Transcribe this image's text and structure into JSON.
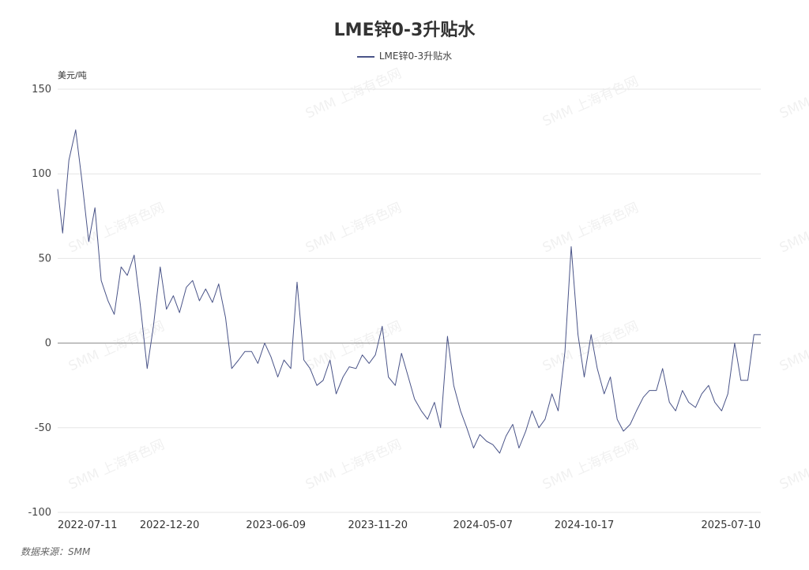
{
  "chart_data": {
    "type": "line",
    "title": "LME锌0-3升贴水",
    "ylabel": "美元/吨",
    "ylim": [
      -100,
      150
    ],
    "yticks": [
      150,
      100,
      50,
      0,
      -50,
      -100
    ],
    "xlim": [
      "2022-06-23",
      "2025-07-28"
    ],
    "xtick_labels": [
      "2022-07-11",
      "2022-12-20",
      "2023-06-09",
      "2023-11-20",
      "2024-05-07",
      "2024-10-17",
      "2025-07-10"
    ],
    "grid": "horizontal",
    "legend_position": "top-center",
    "series": [
      {
        "name": "LME锌0-3升贴水",
        "color": "#4a5488",
        "x": [
          "2022-06-23",
          "2022-07-01",
          "2022-07-11",
          "2022-07-22",
          "2022-08-01",
          "2022-08-12",
          "2022-08-22",
          "2022-09-01",
          "2022-09-12",
          "2022-09-22",
          "2022-10-03",
          "2022-10-13",
          "2022-10-24",
          "2022-11-03",
          "2022-11-14",
          "2022-11-24",
          "2022-12-05",
          "2022-12-15",
          "2022-12-26",
          "2023-01-05",
          "2023-01-16",
          "2023-01-26",
          "2023-02-06",
          "2023-02-16",
          "2023-02-27",
          "2023-03-09",
          "2023-03-20",
          "2023-03-30",
          "2023-04-10",
          "2023-04-20",
          "2023-05-01",
          "2023-05-11",
          "2023-05-22",
          "2023-06-01",
          "2023-06-12",
          "2023-06-22",
          "2023-07-03",
          "2023-07-13",
          "2023-07-24",
          "2023-08-03",
          "2023-08-14",
          "2023-08-24",
          "2023-09-04",
          "2023-09-14",
          "2023-09-25",
          "2023-10-05",
          "2023-10-16",
          "2023-10-26",
          "2023-11-06",
          "2023-11-16",
          "2023-11-27",
          "2023-12-07",
          "2023-12-18",
          "2023-12-28",
          "2024-01-08",
          "2024-01-18",
          "2024-01-29",
          "2024-02-08",
          "2024-02-19",
          "2024-02-29",
          "2024-03-11",
          "2024-03-21",
          "2024-04-01",
          "2024-04-11",
          "2024-04-22",
          "2024-05-02",
          "2024-05-13",
          "2024-05-23",
          "2024-06-03",
          "2024-06-13",
          "2024-06-24",
          "2024-07-04",
          "2024-07-15",
          "2024-07-25",
          "2024-08-05",
          "2024-08-15",
          "2024-08-26",
          "2024-09-05",
          "2024-09-16",
          "2024-09-26",
          "2024-10-07",
          "2024-10-17",
          "2024-10-28",
          "2024-11-07",
          "2024-11-18",
          "2024-11-28",
          "2024-12-09",
          "2024-12-19",
          "2024-12-30",
          "2025-01-09",
          "2025-01-20",
          "2025-01-30",
          "2025-02-10",
          "2025-02-20",
          "2025-03-03",
          "2025-03-13",
          "2025-03-24",
          "2025-04-03",
          "2025-04-14",
          "2025-04-24",
          "2025-05-05",
          "2025-05-15",
          "2025-05-26",
          "2025-06-05",
          "2025-06-16",
          "2025-06-26",
          "2025-07-07",
          "2025-07-17",
          "2025-07-28"
        ],
        "y": [
          91,
          65,
          108,
          126,
          96,
          60,
          80,
          37,
          25,
          17,
          45,
          40,
          52,
          22,
          -15,
          10,
          45,
          20,
          28,
          18,
          33,
          37,
          25,
          32,
          24,
          35,
          15,
          -15,
          -10,
          -5,
          -5,
          -12,
          0,
          -8,
          -20,
          -10,
          -15,
          36,
          -10,
          -15,
          -25,
          -22,
          -10,
          -30,
          -20,
          -14,
          -15,
          -7,
          -12,
          -7,
          10,
          -20,
          -25,
          -6,
          -20,
          -33,
          -40,
          -45,
          -35,
          -50,
          4,
          -25,
          -40,
          -50,
          -62,
          -54,
          -58,
          -60,
          -65,
          -55,
          -48,
          -62,
          -52,
          -40,
          -50,
          -45,
          -30,
          -40,
          -5,
          57,
          5,
          -20,
          5,
          -15,
          -30,
          -20,
          -45,
          -52,
          -48,
          -40,
          -32,
          -28,
          -28,
          -15,
          -35,
          -40,
          -28,
          -35,
          -38,
          -30,
          -25,
          -35,
          -40,
          -30,
          0,
          -22,
          -22,
          5,
          5
        ]
      }
    ]
  },
  "source": "数据来源：SMM",
  "watermark_text": "SMM 上海有色网"
}
